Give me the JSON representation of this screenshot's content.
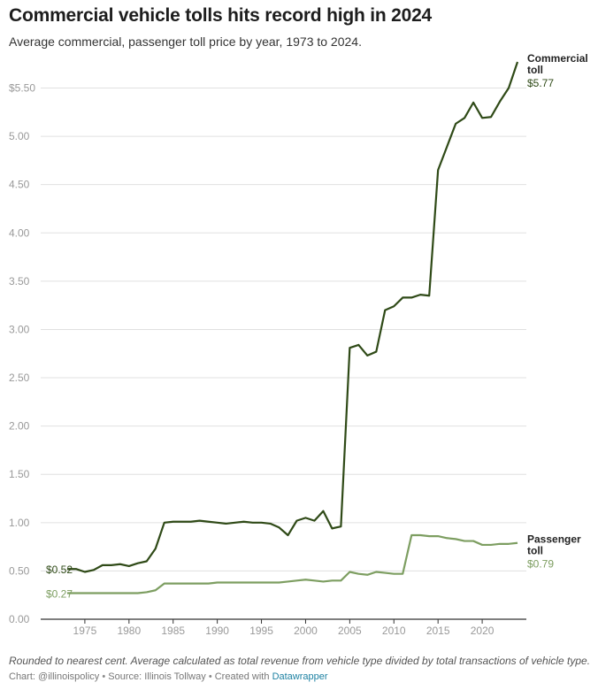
{
  "title": "Commercial vehicle tolls hits record high in 2024",
  "subtitle": "Average commercial, passenger toll price by year, 1973 to 2024.",
  "footer": {
    "note": "Rounded to nearest cent. Average calculated as total revenue from vehicle type divided by total transactions of vehicle type.",
    "chart_by_label": "Chart:",
    "chart_by": "@illinoispolicy",
    "source_label": "Source:",
    "source": "Illinois Tollway",
    "created_label": "Created with",
    "created_with": "Datawrapper",
    "separator": "•"
  },
  "colors": {
    "commercial": "#2f4a17",
    "passenger": "#7d9e61",
    "grid": "#e0e0e0",
    "axis": "#333333",
    "tick": "#999999"
  },
  "chart_data": {
    "type": "line",
    "title": "Commercial vehicle tolls hits record high in 2024",
    "xlabel": "",
    "ylabel": "",
    "xlim": [
      1970,
      2025
    ],
    "ylim": [
      0,
      5.77
    ],
    "x_ticks": [
      1975,
      1980,
      1985,
      1990,
      1995,
      2000,
      2005,
      2010,
      2015,
      2020
    ],
    "y_ticks": [
      0,
      0.5,
      1,
      1.5,
      2,
      2.5,
      3,
      3.5,
      4,
      4.5,
      5,
      5.5
    ],
    "y_tick_labels": [
      "0.00",
      "0.50",
      "1.00",
      "1.50",
      "2.00",
      "2.50",
      "3.00",
      "3.50",
      "4.00",
      "4.50",
      "5.00",
      "$5.50"
    ],
    "grid": true,
    "x": [
      1973,
      1974,
      1975,
      1976,
      1977,
      1978,
      1979,
      1980,
      1981,
      1982,
      1983,
      1984,
      1985,
      1986,
      1987,
      1988,
      1989,
      1990,
      1991,
      1992,
      1993,
      1994,
      1995,
      1996,
      1997,
      1998,
      1999,
      2000,
      2001,
      2002,
      2003,
      2004,
      2005,
      2006,
      2007,
      2008,
      2009,
      2010,
      2011,
      2012,
      2013,
      2014,
      2015,
      2016,
      2017,
      2018,
      2019,
      2020,
      2021,
      2022,
      2023,
      2024
    ],
    "series": [
      {
        "name": "Commercial toll",
        "label_lines": [
          "Commercial",
          "toll"
        ],
        "end_label": "$5.77",
        "start_label": "$0.52",
        "values": [
          0.52,
          0.52,
          0.49,
          0.51,
          0.56,
          0.56,
          0.57,
          0.55,
          0.58,
          0.6,
          0.73,
          1.0,
          1.01,
          1.01,
          1.01,
          1.02,
          1.01,
          1.0,
          0.99,
          1.0,
          1.01,
          1.0,
          1.0,
          0.99,
          0.95,
          0.87,
          1.02,
          1.05,
          1.02,
          1.12,
          0.94,
          0.96,
          2.81,
          2.84,
          2.73,
          2.77,
          3.2,
          3.24,
          3.33,
          3.33,
          3.36,
          3.35,
          4.65,
          4.89,
          5.13,
          5.19,
          5.35,
          5.19,
          5.2,
          5.36,
          5.5,
          5.77
        ]
      },
      {
        "name": "Passenger toll",
        "label_lines": [
          "Passenger",
          "toll"
        ],
        "end_label": "$0.79",
        "start_label": "$0.27",
        "values": [
          0.27,
          0.27,
          0.27,
          0.27,
          0.27,
          0.27,
          0.27,
          0.27,
          0.27,
          0.28,
          0.3,
          0.37,
          0.37,
          0.37,
          0.37,
          0.37,
          0.37,
          0.38,
          0.38,
          0.38,
          0.38,
          0.38,
          0.38,
          0.38,
          0.38,
          0.39,
          0.4,
          0.41,
          0.4,
          0.39,
          0.4,
          0.4,
          0.49,
          0.47,
          0.46,
          0.49,
          0.48,
          0.47,
          0.47,
          0.87,
          0.87,
          0.86,
          0.86,
          0.84,
          0.83,
          0.81,
          0.81,
          0.77,
          0.77,
          0.78,
          0.78,
          0.79
        ]
      }
    ]
  }
}
